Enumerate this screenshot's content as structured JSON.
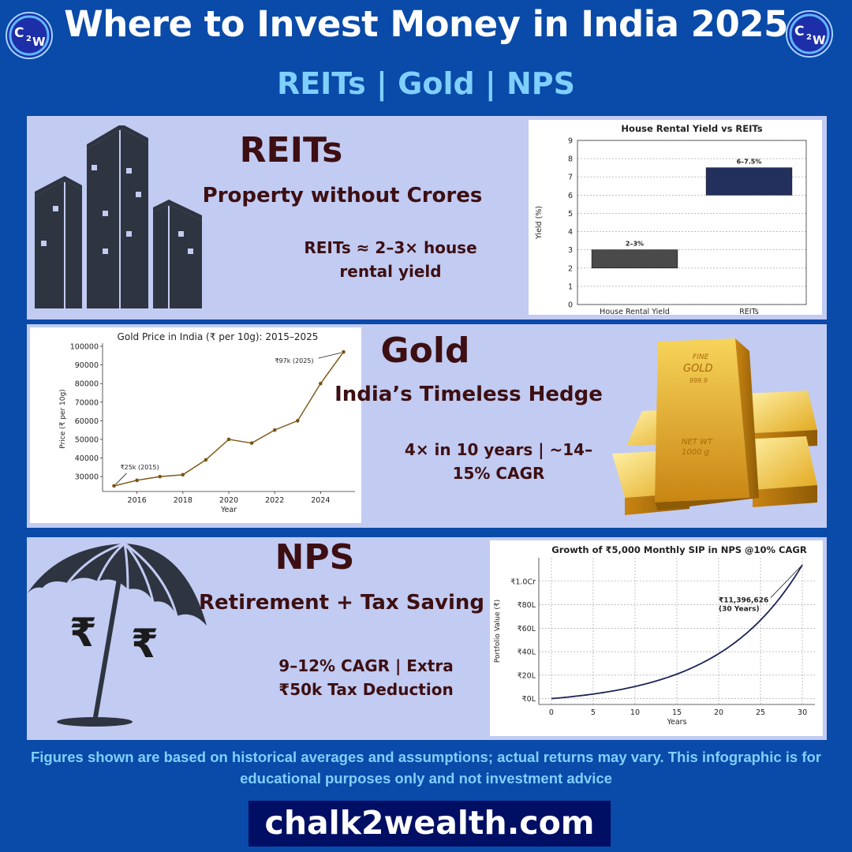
{
  "header": {
    "title": "Where to Invest Money in India 2025",
    "subtitle": "REITs | Gold | NPS",
    "logo_text": "C2W"
  },
  "reits": {
    "heading": "REITs",
    "tagline": "Property without Crores",
    "note": "REITs ≈ 2–3× house rental yield"
  },
  "gold": {
    "heading": "Gold",
    "tagline": "India’s Timeless Hedge",
    "note": "4× in 10 years | ~14–15% CAGR",
    "bar_text_fine": "FINE",
    "bar_text_gold": "GOLD",
    "bar_text_purity": "999.9",
    "bar_text_netwt": "NET WT",
    "bar_text_weight": "1000 g"
  },
  "nps": {
    "heading": "NPS",
    "tagline": "Retirement + Tax Saving",
    "note": "9–12% CAGR | Extra ₹50k Tax Deduction",
    "rupee_symbol": "₹"
  },
  "footer": {
    "disclaimer": "Figures shown are based on historical averages and assumptions; actual returns may vary. This infographic is for educational purposes only and not investment advice",
    "website": "chalk2wealth.com"
  },
  "colors": {
    "background": "#0a4aa8",
    "panel": "#c2cbf2",
    "heading_text": "#3d0f12",
    "accent_light_blue": "#7fd0ff",
    "bar_house": "#4a4a4a",
    "bar_reits": "#232f5c",
    "gold_line": "#7a5412",
    "nps_line": "#1c2457"
  },
  "chart_data": [
    {
      "type": "bar",
      "title": "House Rental Yield vs REITs",
      "ylabel": "Yield (%)",
      "xlabel": "",
      "categories": [
        "House Rental Yield",
        "REITs"
      ],
      "ranges": [
        [
          2,
          3
        ],
        [
          6,
          7.5
        ]
      ],
      "data_labels": [
        "2–3%",
        "6–7.5%"
      ],
      "ylim": [
        0,
        9
      ],
      "yticks": [
        0,
        1,
        2,
        3,
        4,
        5,
        6,
        7,
        8,
        9
      ],
      "grid": true
    },
    {
      "type": "line",
      "title": "Gold Price in India (₹ per 10g): 2015–2025",
      "xlabel": "Year",
      "ylabel": "Price (₹ per 10g)",
      "x": [
        2015,
        2016,
        2017,
        2018,
        2019,
        2020,
        2021,
        2022,
        2023,
        2024,
        2025
      ],
      "y": [
        25000,
        28000,
        30000,
        31000,
        39000,
        50000,
        48000,
        55000,
        60000,
        80000,
        97000
      ],
      "xlim": [
        2014.5,
        2025.5
      ],
      "ylim": [
        22000,
        100000
      ],
      "xticks": [
        2016,
        2018,
        2020,
        2022,
        2024
      ],
      "yticks": [
        30000,
        40000,
        50000,
        60000,
        70000,
        80000,
        90000,
        100000
      ],
      "annotations": [
        {
          "text": "₹25k (2015)",
          "x": 2015,
          "y": 25000
        },
        {
          "text": "₹97k (2025)",
          "x": 2025,
          "y": 97000
        }
      ],
      "grid": false
    },
    {
      "type": "line",
      "title": "Growth of ₹5,000 Monthly SIP in NPS @10% CAGR",
      "xlabel": "Years",
      "ylabel": "Portfolio Value (₹)",
      "monthly_investment": 5000,
      "annual_rate": 0.1,
      "x": [
        0,
        5,
        10,
        15,
        20,
        25,
        30
      ],
      "y": [
        0,
        390412,
        1032760,
        2089505,
        3828460,
        6689000,
        11396626
      ],
      "xlim": [
        -1.5,
        31.5
      ],
      "ylim": [
        -500000,
        12000000
      ],
      "xticks": [
        0,
        5,
        10,
        15,
        20,
        25,
        30
      ],
      "yticks": [
        0,
        2000000,
        4000000,
        6000000,
        8000000,
        10000000
      ],
      "ytick_labels": [
        "₹0L",
        "₹20L",
        "₹40L",
        "₹60L",
        "₹80L",
        "₹1.0Cr"
      ],
      "annotations": [
        {
          "text": "₹11,396,626",
          "x": 30,
          "y": 11396626
        },
        {
          "text": "(30 Years)",
          "x": 30,
          "y": 11396626
        }
      ],
      "grid": true
    }
  ]
}
